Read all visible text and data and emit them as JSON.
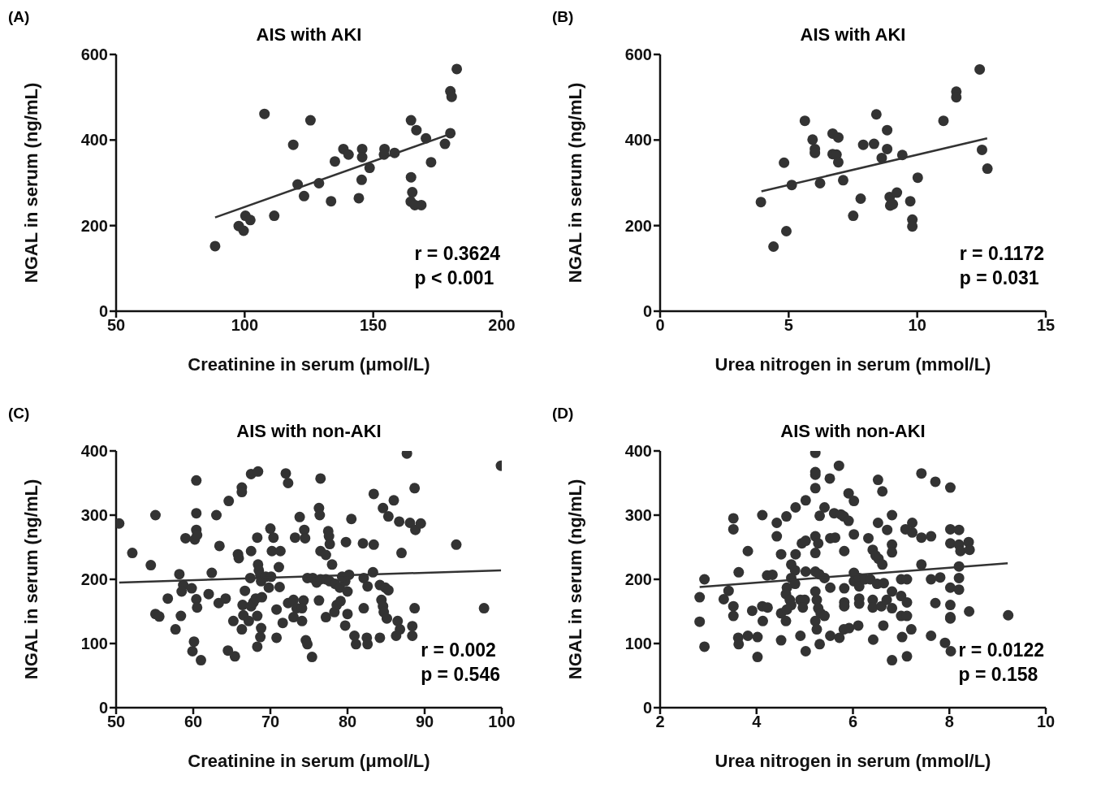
{
  "chart_data": [
    {
      "type": "scatter",
      "title": "AIS with AKI",
      "xlabel": "Creatinine in serum (μmol/L)",
      "ylabel": "NGAL in serum (ng/mL)",
      "xlim": [
        50,
        200
      ],
      "xticks": [
        50,
        100,
        150,
        200
      ],
      "ylim": [
        0,
        600
      ],
      "yticks": [
        0,
        200,
        400,
        600
      ],
      "marker": "circle",
      "annotations": [
        "(A)",
        "r = 0.3624",
        "p < 0.001"
      ],
      "series": [
        {
          "color": "#333333",
          "x": [
            88.5,
            97.7,
            99.6,
            100.3,
            102.2,
            111.5,
            107.7,
            118.9,
            120.6,
            123.1,
            125.6,
            128.9,
            133.6,
            135.1,
            138.4,
            140.4,
            144.4,
            145.5,
            145.7,
            145.7,
            148.6,
            154.4,
            154.2,
            158.3,
            164.7,
            166.8,
            170.5,
            164.7,
            165.2,
            164.6,
            166.2,
            168.7,
            172.5,
            177.9,
            180,
            180,
            180.5,
            182.5
          ],
          "values": [
            152,
            199,
            188,
            223,
            213,
            223,
            461,
            389,
            296,
            269,
            446,
            299,
            257,
            350,
            379,
            366,
            264,
            307,
            379,
            360,
            335,
            379,
            366,
            370,
            446,
            423,
            404,
            313,
            278,
            256,
            248,
            248,
            348,
            391,
            416,
            514,
            501,
            566
          ]
        },
        {
          "type": "line",
          "marker": "none",
          "color": "#333333",
          "x": [
            88.5,
            181.3
          ],
          "values": [
            219,
            417
          ]
        }
      ]
    },
    {
      "type": "scatter",
      "title": "AIS with AKI",
      "xlabel": "Urea nitrogen in serum (mmol/L)",
      "ylabel": "NGAL in serum (ng/mL)",
      "xlim": [
        0,
        15
      ],
      "xticks": [
        0,
        5,
        10,
        15
      ],
      "ylim": [
        0,
        600
      ],
      "yticks": [
        0,
        200,
        400,
        600
      ],
      "marker": "circle",
      "annotations": [
        "(B)",
        "r = 0.1172",
        "p = 0.031"
      ],
      "series": [
        {
          "color": "#333333",
          "x": [
            3.92,
            4.41,
            4.82,
            4.91,
            5.12,
            5.63,
            5.93,
            6.02,
            6.02,
            6.22,
            6.71,
            6.93,
            6.71,
            6.86,
            6.93,
            7.12,
            7.51,
            7.8,
            7.9,
            8.32,
            8.41,
            8.62,
            8.83,
            8.83,
            8.93,
            8.95,
            9.05,
            9.21,
            9.42,
            9.73,
            9.81,
            9.81,
            10.02,
            11.02,
            11.52,
            11.52,
            12.43,
            12.52,
            12.73
          ],
          "values": [
            255,
            151,
            347,
            187,
            295,
            445,
            401,
            379,
            370,
            299,
            415,
            406,
            367,
            366,
            348,
            306,
            223,
            263,
            389,
            391,
            460,
            358,
            379,
            423,
            267,
            247,
            250,
            277,
            365,
            257,
            214,
            198,
            312,
            445,
            513,
            500,
            565,
            377,
            333
          ]
        },
        {
          "type": "line",
          "marker": "none",
          "color": "#333333",
          "x": [
            3.94,
            12.72
          ],
          "values": [
            280,
            404
          ]
        }
      ]
    },
    {
      "type": "scatter",
      "title": "AIS with non-AKI",
      "xlabel": "Creatinine in serum (μmol/L)",
      "ylabel": "NGAL in serum (ng/mL)",
      "xlim": [
        50,
        100
      ],
      "xticks": [
        50,
        60,
        70,
        80,
        90,
        100
      ],
      "ylim": [
        0,
        400
      ],
      "yticks": [
        0,
        100,
        200,
        300,
        400
      ],
      "marker": "circle",
      "annotations": [
        "(C)",
        "r = 0.002",
        "p = 0.546"
      ],
      "series": [
        {
          "color": "#333333",
          "x": [
            50.4,
            52.1,
            54.5,
            55.1,
            55.1,
            55.6,
            56.7,
            57.7,
            58.2,
            58.4,
            58.7,
            58.5,
            59.0,
            59.8,
            60.1,
            59.9,
            60.4,
            60.4,
            60.4,
            60.2,
            60.5,
            60.4,
            60.5,
            61.0,
            62.0,
            62.4,
            63.0,
            63.4,
            63.3,
            64.2,
            64.6,
            64.5,
            65.4,
            65.2,
            65.8,
            65.9,
            66.3,
            66.3,
            66.3,
            66.4,
            66.7,
            66.5,
            67.2,
            67.5,
            67.5,
            68.4,
            67.4,
            67.5,
            67.8,
            68.1,
            68.3,
            68.4,
            68.5,
            68.7,
            68.8,
            69.4,
            70.1,
            68.3,
            68.8,
            68.7,
            68.3,
            68.9,
            69.8,
            70.0,
            70.4,
            70.2,
            71.3,
            70.8,
            70.8,
            71.1,
            71.2,
            71.6,
            72.0,
            72.3,
            72.3,
            73.0,
            74.3,
            73.4,
            74.1,
            73.0,
            73.2,
            73.8,
            74.1,
            74.4,
            74.5,
            74.6,
            74.8,
            74.8,
            75.5,
            76.0,
            76.5,
            77.2,
            77.7,
            78.4,
            79.0,
            79.7,
            80.0,
            79.3,
            75.4,
            76.3,
            76.4,
            76.3,
            76.5,
            76.5,
            77.2,
            77.2,
            77.5,
            77.6,
            77.7,
            78.0,
            78.3,
            78.6,
            79.1,
            79.8,
            80.0,
            79.7,
            80.2,
            80.5,
            80.9,
            81.1,
            82.0,
            83.4,
            82.1,
            82.6,
            83.3,
            82.1,
            82.5,
            82.6,
            83.4,
            84.2,
            84.2,
            84.9,
            85.3,
            84.6,
            85.3,
            84.4,
            84.6,
            84.7,
            85.1,
            86.0,
            86.3,
            86.5,
            86.8,
            86.7,
            87.0,
            87.7,
            88.1,
            88.8,
            89.5,
            88.7,
            88.4,
            88.4,
            88.7,
            94.1,
            97.7,
            99.9
          ],
          "values": [
            287,
            241,
            222,
            300,
            146,
            142,
            170,
            122,
            208,
            143,
            191,
            181,
            264,
            186,
            103,
            88,
            354,
            303,
            277,
            262,
            269,
            169,
            156,
            74,
            177,
            210,
            300,
            252,
            163,
            170,
            322,
            89,
            80,
            135,
            239,
            233,
            343,
            336,
            122,
            160,
            182,
            144,
            135,
            244,
            364,
            368,
            202,
            158,
            164,
            170,
            265,
            223,
            214,
            206,
            197,
            204,
            204,
            143,
            124,
            110,
            95,
            172,
            187,
            279,
            265,
            244,
            244,
            153,
            109,
            219,
            188,
            132,
            365,
            350,
            163,
            168,
            167,
            155,
            155,
            141,
            265,
            297,
            135,
            277,
            264,
            105,
            99,
            202,
            202,
            195,
            200,
            200,
            197,
            193,
            187,
            197,
            181,
            204,
            79,
            311,
            300,
            167,
            357,
            244,
            238,
            141,
            275,
            267,
            255,
            223,
            149,
            160,
            166,
            258,
            146,
            128,
            207,
            294,
            112,
            99,
            256,
            254,
            202,
            189,
            211,
            155,
            109,
            99,
            333,
            109,
            191,
            187,
            183,
            311,
            298,
            168,
            158,
            149,
            139,
            323,
            112,
            135,
            122,
            290,
            241,
            396,
            288,
            277,
            287,
            342,
            127,
            112,
            155,
            254,
            155,
            377
          ]
        },
        {
          "type": "line",
          "marker": "none",
          "color": "#333333",
          "x": [
            50.4,
            99.9
          ],
          "values": [
            195,
            214
          ]
        }
      ]
    },
    {
      "type": "scatter",
      "title": "AIS with non-AKI",
      "xlabel": "Urea nitrogen in serum (mmol/L)",
      "ylabel": "NGAL in serum (ng/mL)",
      "xlim": [
        2,
        10
      ],
      "xticks": [
        2,
        4,
        6,
        8,
        10
      ],
      "ylim": [
        0,
        400
      ],
      "yticks": [
        0,
        100,
        200,
        300,
        400
      ],
      "marker": "circle",
      "annotations": [
        "(D)",
        "r = 0.0122",
        "p = 0.158"
      ],
      "series": [
        {
          "color": "#333333",
          "x": [
            2.82,
            2.82,
            2.92,
            2.92,
            3.32,
            3.42,
            3.52,
            3.52,
            3.52,
            3.52,
            3.62,
            3.63,
            3.63,
            3.82,
            3.82,
            3.91,
            4.02,
            4.02,
            4.12,
            4.12,
            4.23,
            4.13,
            4.22,
            4.33,
            4.42,
            4.42,
            4.51,
            4.51,
            4.51,
            4.62,
            4.61,
            4.72,
            4.8,
            4.72,
            4.8,
            4.63,
            4.61,
            4.69,
            4.72,
            4.63,
            4.81,
            4.81,
            4.91,
            5.0,
            4.91,
            4.96,
            5.02,
            5.02,
            4.94,
            5.02,
            5.02,
            5.22,
            5.22,
            5.22,
            5.22,
            5.22,
            5.28,
            5.22,
            5.22,
            5.3,
            5.41,
            5.22,
            5.25,
            5.28,
            5.33,
            5.41,
            5.22,
            5.25,
            5.31,
            5.31,
            5.41,
            5.52,
            5.53,
            5.53,
            5.53,
            5.63,
            5.61,
            5.75,
            5.81,
            5.91,
            5.71,
            5.72,
            5.82,
            5.82,
            5.82,
            5.82,
            5.81,
            5.92,
            6.11,
            5.91,
            6.02,
            6.02,
            6.02,
            6.02,
            6.13,
            6.13,
            6.25,
            6.36,
            6.13,
            6.13,
            6.32,
            6.41,
            6.47,
            6.53,
            6.61,
            6.41,
            6.41,
            6.59,
            6.7,
            6.81,
            6.42,
            6.52,
            6.61,
            6.52,
            6.71,
            6.5,
            6.64,
            6.63,
            6.81,
            6.81,
            6.81,
            6.81,
            6.81,
            7.12,
            7.0,
            7.12,
            7.0,
            7.12,
            7.0,
            7.12,
            7.02,
            7.21,
            7.09,
            7.23,
            7.23,
            7.42,
            7.62,
            7.42,
            7.42,
            7.62,
            7.81,
            7.62,
            7.71,
            7.71,
            7.91,
            8.03,
            8.02,
            8.02,
            8.2,
            8.02,
            8.2,
            8.23,
            8.4,
            8.42,
            8.2,
            8.2,
            8.02,
            8.2,
            8.02,
            8.02,
            8.02,
            8.41,
            9.22
          ],
          "values": [
            172,
            134,
            200,
            95,
            169,
            182,
            295,
            278,
            158,
            143,
            109,
            99,
            211,
            244,
            112,
            151,
            110,
            79,
            300,
            158,
            156,
            135,
            206,
            207,
            288,
            267,
            239,
            105,
            147,
            298,
            135,
            223,
            214,
            202,
            193,
            187,
            177,
            168,
            160,
            153,
            239,
            312,
            168,
            168,
            112,
            156,
            323,
            88,
            256,
            260,
            212,
            397,
            367,
            363,
            342,
            267,
            256,
            241,
            212,
            208,
            202,
            181,
            168,
            155,
            147,
            143,
            135,
            122,
            299,
            99,
            312,
            357,
            187,
            112,
            264,
            265,
            303,
            301,
            298,
            291,
            377,
            109,
            244,
            186,
            164,
            158,
            122,
            124,
            128,
            334,
            322,
            270,
            210,
            197,
            202,
            189,
            200,
            200,
            170,
            162,
            264,
            246,
            237,
            232,
            223,
            168,
            156,
            158,
            168,
            181,
            106,
            355,
            337,
            288,
            277,
            193,
            194,
            128,
            300,
            254,
            242,
            155,
            74,
            80,
            200,
            200,
            174,
            164,
            143,
            143,
            110,
            122,
            278,
            288,
            273,
            265,
            267,
            365,
            223,
            200,
            203,
            112,
            352,
            163,
            101,
            88,
            343,
            278,
            277,
            256,
            254,
            244,
            258,
            246,
            220,
            202,
            187,
            184,
            160,
            141,
            139,
            150,
            144
          ]
        },
        {
          "type": "line",
          "marker": "none",
          "color": "#333333",
          "x": [
            2.82,
            9.21
          ],
          "values": [
            188,
            225
          ]
        }
      ]
    }
  ]
}
